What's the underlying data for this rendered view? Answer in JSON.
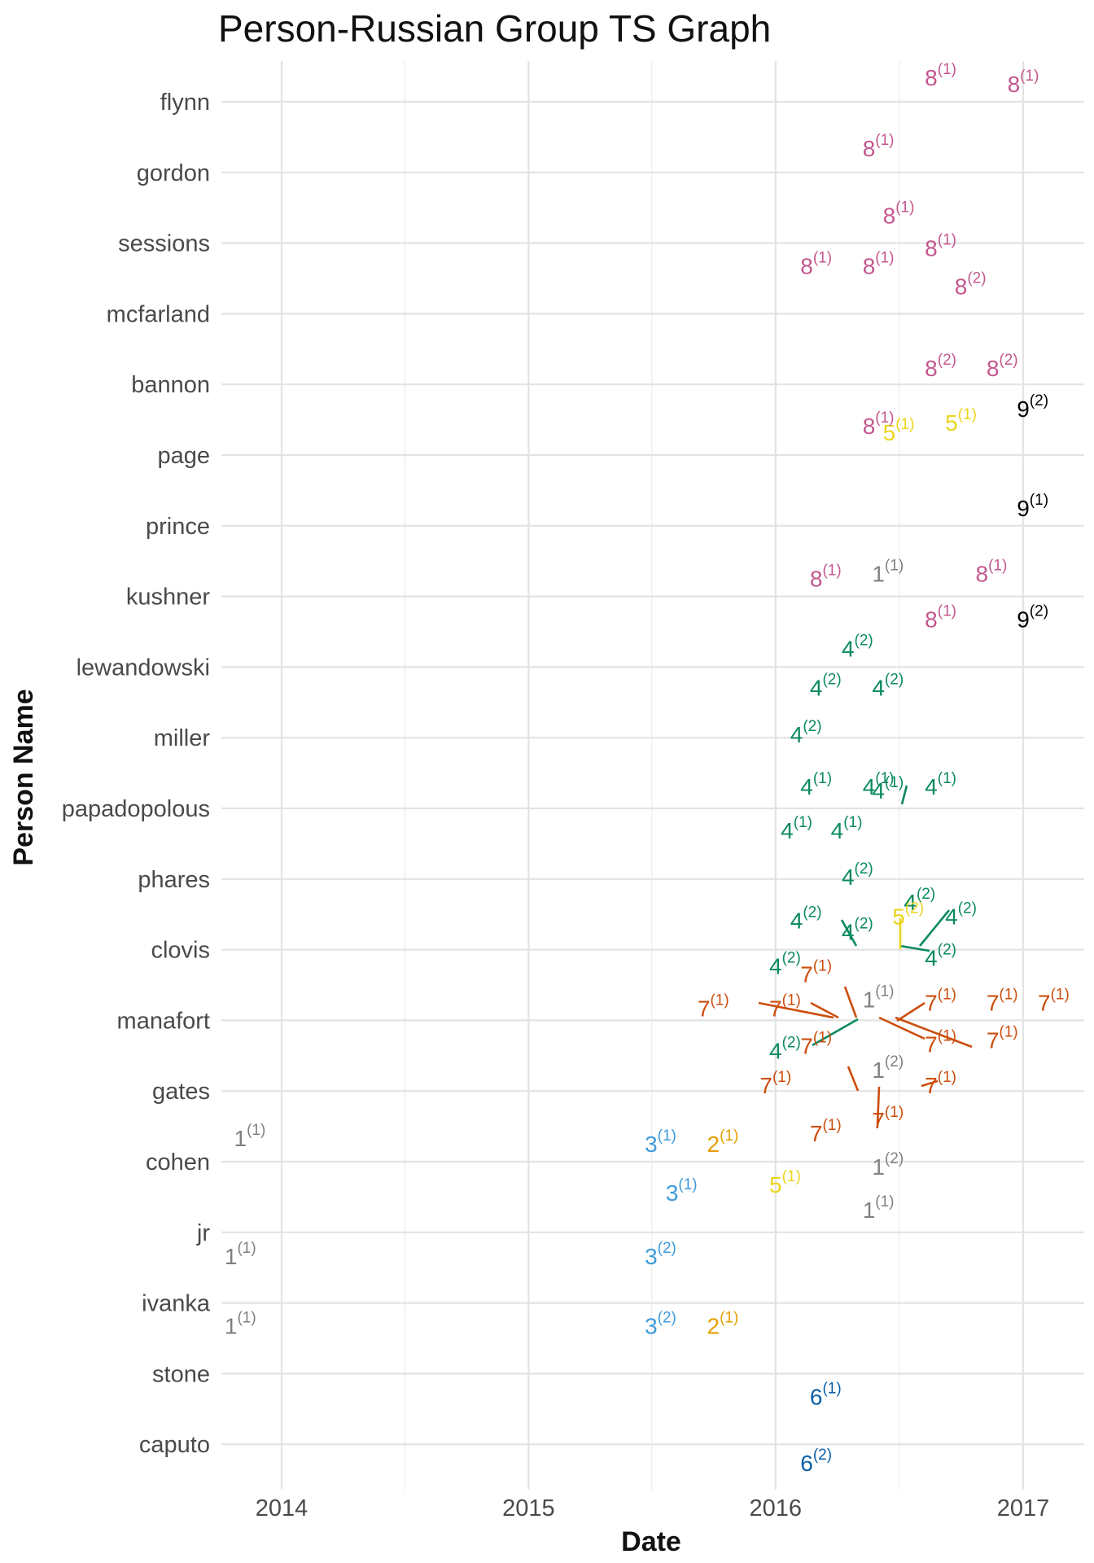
{
  "chart_data": {
    "type": "scatter",
    "title": "Person-Russian Group TS Graph",
    "xlabel": "Date",
    "ylabel": "Person Name",
    "x_ticks": [
      "2014",
      "2015",
      "2016",
      "2017"
    ],
    "xlim": [
      "2013-10-01",
      "2017-03-15"
    ],
    "y_categories": [
      "flynn",
      "gordon",
      "sessions",
      "mcfarland",
      "bannon",
      "page",
      "prince",
      "kushner",
      "lewandowski",
      "miller",
      "papadopolous",
      "phares",
      "clovis",
      "manafort",
      "gates",
      "cohen",
      "jr",
      "ivanka",
      "stone",
      "caputo"
    ],
    "grid": true,
    "legend": "none",
    "group_colors": {
      "1": "#808080",
      "2": "#E69F00",
      "3": "#3C9BDB",
      "4": "#0B8A60",
      "5": "#EBD51E",
      "6": "#0A5FA8",
      "7": "#CC4E0E",
      "8": "#C4578E",
      "9": "#000000"
    },
    "points": [
      {
        "person": "flynn",
        "date": "2017-01-01",
        "group": "8",
        "count": "1"
      },
      {
        "person": "flynn",
        "date": "2016-09-01",
        "group": "8",
        "count": "1"
      },
      {
        "person": "gordon",
        "date": "2016-06-01",
        "group": "8",
        "count": "1"
      },
      {
        "person": "sessions",
        "date": "2016-07-01",
        "group": "8",
        "count": "1"
      },
      {
        "person": "sessions",
        "date": "2016-03-01",
        "group": "8",
        "count": "1"
      },
      {
        "person": "sessions",
        "date": "2016-06-01",
        "group": "8",
        "count": "1"
      },
      {
        "person": "sessions",
        "date": "2016-09-01",
        "group": "8",
        "count": "1"
      },
      {
        "person": "mcfarland",
        "date": "2016-10-15",
        "group": "8",
        "count": "2"
      },
      {
        "person": "bannon",
        "date": "2016-09-01",
        "group": "8",
        "count": "2"
      },
      {
        "person": "bannon",
        "date": "2016-12-01",
        "group": "8",
        "count": "2"
      },
      {
        "person": "bannon",
        "date": "2017-01-15",
        "group": "9",
        "count": "2"
      },
      {
        "person": "page",
        "date": "2016-07-01",
        "group": "5",
        "count": "1"
      },
      {
        "person": "page",
        "date": "2016-06-01",
        "group": "8",
        "count": "1"
      },
      {
        "person": "page",
        "date": "2016-10-01",
        "group": "5",
        "count": "1"
      },
      {
        "person": "prince",
        "date": "2017-01-15",
        "group": "9",
        "count": "1"
      },
      {
        "person": "kushner",
        "date": "2016-03-15",
        "group": "8",
        "count": "1"
      },
      {
        "person": "kushner",
        "date": "2016-06-15",
        "group": "1",
        "count": "1"
      },
      {
        "person": "kushner",
        "date": "2016-11-15",
        "group": "8",
        "count": "1"
      },
      {
        "person": "kushner",
        "date": "2016-09-01",
        "group": "8",
        "count": "1"
      },
      {
        "person": "kushner",
        "date": "2017-01-15",
        "group": "9",
        "count": "2"
      },
      {
        "person": "lewandowski",
        "date": "2016-03-15",
        "group": "4",
        "count": "2"
      },
      {
        "person": "lewandowski",
        "date": "2016-06-15",
        "group": "4",
        "count": "2"
      },
      {
        "person": "lewandowski",
        "date": "2016-05-01",
        "group": "4",
        "count": "2"
      },
      {
        "person": "miller",
        "date": "2016-02-15",
        "group": "4",
        "count": "2"
      },
      {
        "person": "papadopolous",
        "date": "2016-02-01",
        "group": "4",
        "count": "1"
      },
      {
        "person": "papadopolous",
        "date": "2016-04-15",
        "group": "4",
        "count": "1"
      },
      {
        "person": "papadopolous",
        "date": "2016-06-15",
        "group": "4",
        "count": "1"
      },
      {
        "person": "papadopolous",
        "date": "2016-03-01",
        "group": "4",
        "count": "1"
      },
      {
        "person": "papadopolous",
        "date": "2016-06-01",
        "group": "4",
        "count": "1"
      },
      {
        "person": "papadopolous",
        "date": "2016-09-01",
        "group": "4",
        "count": "1"
      },
      {
        "person": "phares",
        "date": "2016-08-01",
        "group": "4",
        "count": "2"
      },
      {
        "person": "phares",
        "date": "2016-05-01",
        "group": "4",
        "count": "2"
      },
      {
        "person": "clovis",
        "date": "2016-02-15",
        "group": "4",
        "count": "2"
      },
      {
        "person": "clovis",
        "date": "2016-05-01",
        "group": "4",
        "count": "2"
      },
      {
        "person": "clovis",
        "date": "2016-07-15",
        "group": "5",
        "count": "2"
      },
      {
        "person": "clovis",
        "date": "2016-10-01",
        "group": "4",
        "count": "2"
      },
      {
        "person": "clovis",
        "date": "2016-09-01",
        "group": "4",
        "count": "2"
      },
      {
        "person": "clovis",
        "date": "2016-01-15",
        "group": "4",
        "count": "2"
      },
      {
        "person": "manafort",
        "date": "2016-03-01",
        "group": "7",
        "count": "1"
      },
      {
        "person": "manafort",
        "date": "2016-06-01",
        "group": "1",
        "count": "1"
      },
      {
        "person": "manafort",
        "date": "2015-10-01",
        "group": "7",
        "count": "1"
      },
      {
        "person": "manafort",
        "date": "2016-01-15",
        "group": "7",
        "count": "1"
      },
      {
        "person": "manafort",
        "date": "2016-09-01",
        "group": "7",
        "count": "1"
      },
      {
        "person": "manafort",
        "date": "2016-12-01",
        "group": "7",
        "count": "1"
      },
      {
        "person": "manafort",
        "date": "2017-02-15",
        "group": "7",
        "count": "1"
      },
      {
        "person": "manafort",
        "date": "2016-01-15",
        "group": "4",
        "count": "2"
      },
      {
        "person": "manafort",
        "date": "2016-03-01",
        "group": "7",
        "count": "1"
      },
      {
        "person": "manafort",
        "date": "2016-09-01",
        "group": "7",
        "count": "1"
      },
      {
        "person": "manafort",
        "date": "2016-12-01",
        "group": "7",
        "count": "1"
      },
      {
        "person": "gates",
        "date": "2016-06-15",
        "group": "1",
        "count": "2"
      },
      {
        "person": "gates",
        "date": "2016-01-01",
        "group": "7",
        "count": "1"
      },
      {
        "person": "gates",
        "date": "2016-09-01",
        "group": "7",
        "count": "1"
      },
      {
        "person": "gates",
        "date": "2016-03-15",
        "group": "7",
        "count": "1"
      },
      {
        "person": "gates",
        "date": "2016-06-15",
        "group": "7",
        "count": "1"
      },
      {
        "person": "cohen",
        "date": "2013-11-15",
        "group": "1",
        "count": "1"
      },
      {
        "person": "cohen",
        "date": "2015-07-15",
        "group": "3",
        "count": "1"
      },
      {
        "person": "cohen",
        "date": "2015-10-15",
        "group": "2",
        "count": "1"
      },
      {
        "person": "cohen",
        "date": "2016-06-15",
        "group": "1",
        "count": "2"
      },
      {
        "person": "cohen",
        "date": "2015-08-15",
        "group": "3",
        "count": "1"
      },
      {
        "person": "cohen",
        "date": "2016-01-15",
        "group": "5",
        "count": "1"
      },
      {
        "person": "jr",
        "date": "2016-06-01",
        "group": "1",
        "count": "1"
      },
      {
        "person": "jr",
        "date": "2013-11-01",
        "group": "1",
        "count": "1"
      },
      {
        "person": "jr",
        "date": "2015-07-15",
        "group": "3",
        "count": "2"
      },
      {
        "person": "ivanka",
        "date": "2013-11-01",
        "group": "1",
        "count": "1"
      },
      {
        "person": "ivanka",
        "date": "2015-07-15",
        "group": "3",
        "count": "2"
      },
      {
        "person": "ivanka",
        "date": "2015-10-15",
        "group": "2",
        "count": "1"
      },
      {
        "person": "stone",
        "date": "2016-03-15",
        "group": "6",
        "count": "1"
      },
      {
        "person": "caputo",
        "date": "2016-03-01",
        "group": "6",
        "count": "2"
      }
    ]
  }
}
